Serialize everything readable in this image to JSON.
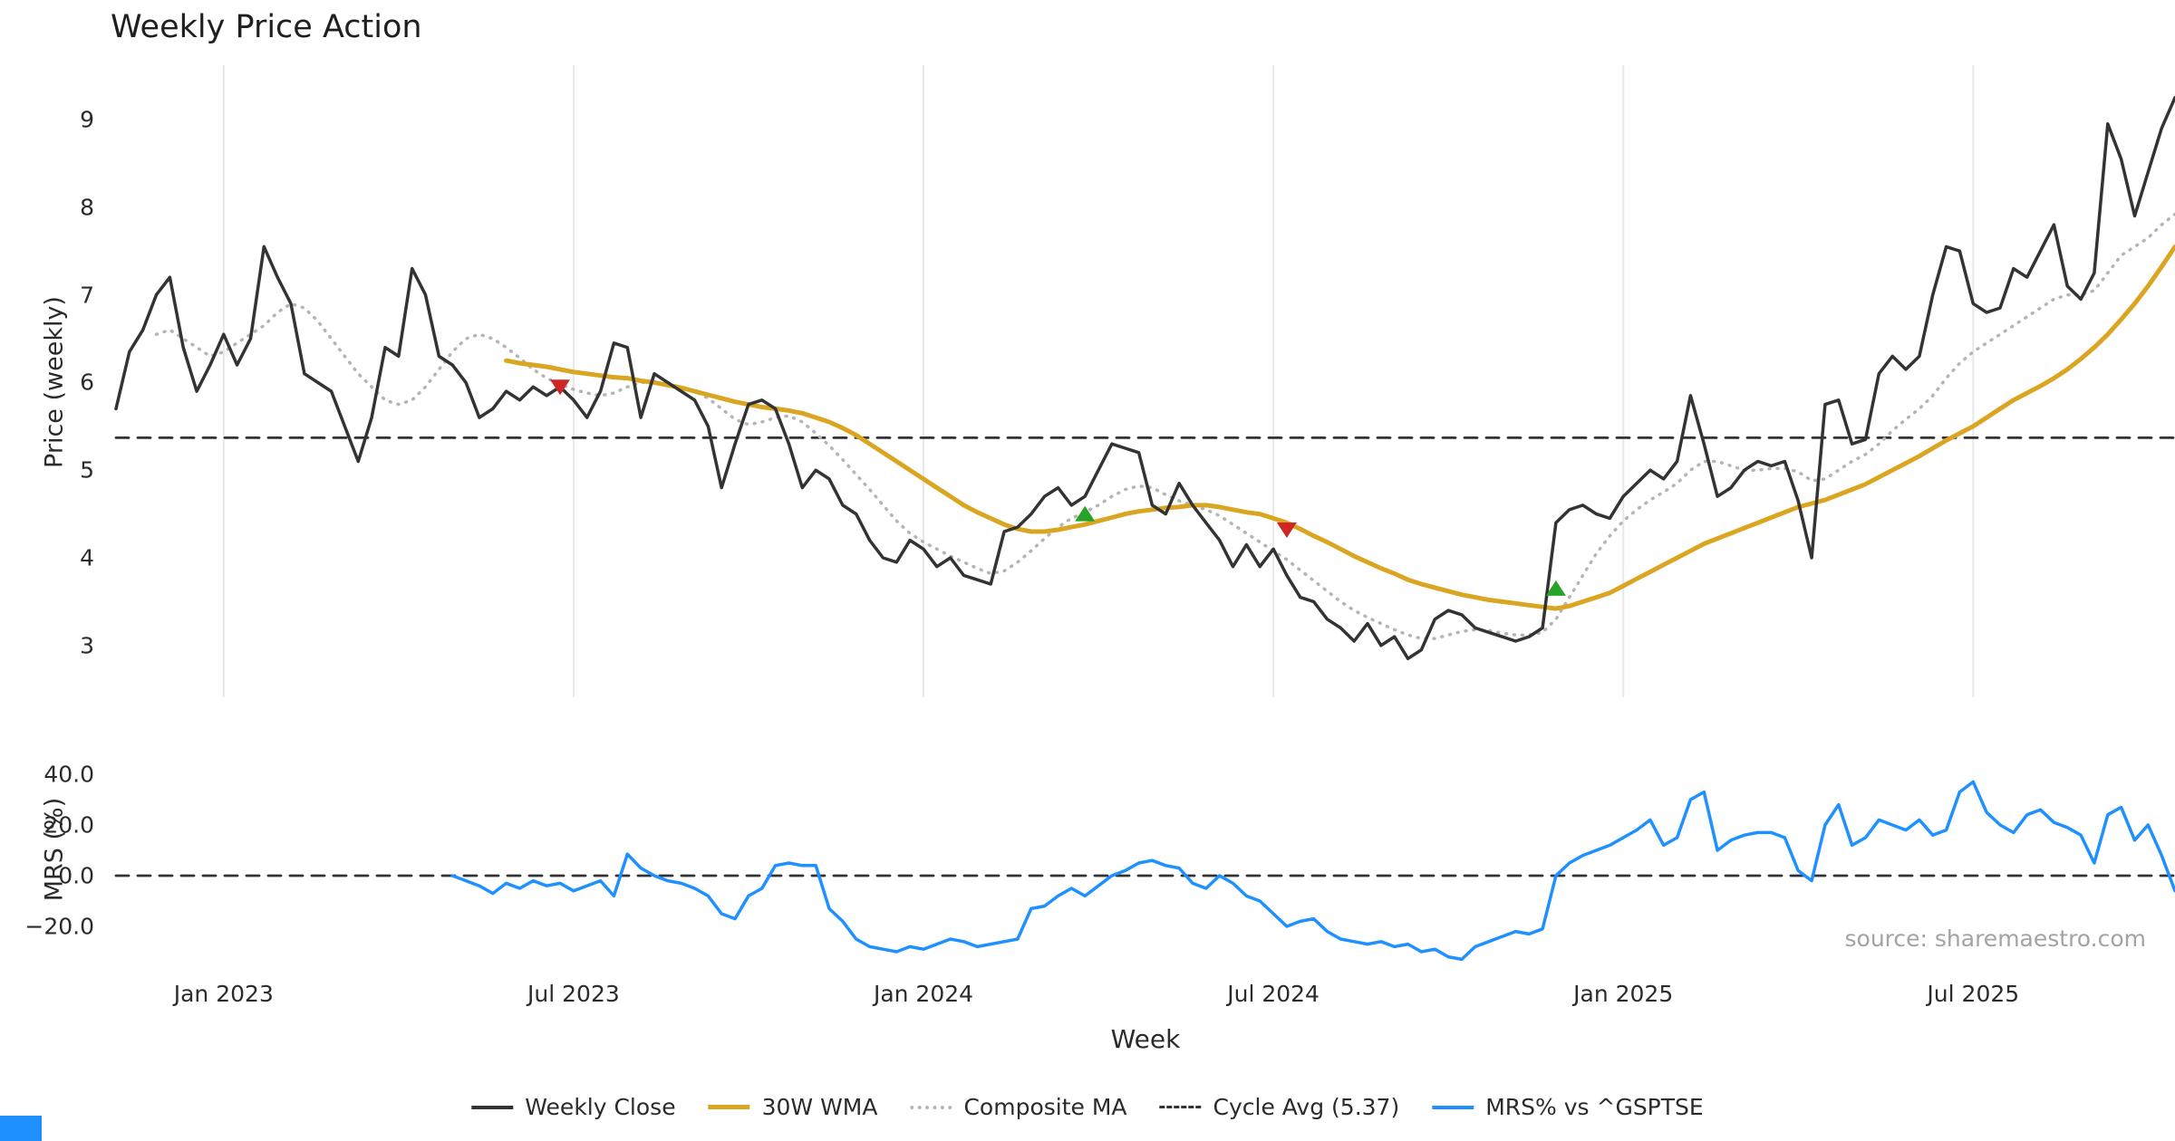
{
  "title": "Weekly Price Action",
  "source_text": "source: sharemaestro.com",
  "accent_colors": {
    "close": "#333333",
    "wma": "#DAA520",
    "composite": "#b5b5b5",
    "dashed": "#333333",
    "mrs": "#1E90FF",
    "buy": "#28A228",
    "sell": "#CF2525",
    "gridline": "#e8e8e8",
    "corner_mark": "#1E90FF"
  },
  "legend": [
    {
      "label": "Weekly Close",
      "color": "#333333",
      "style": "solid"
    },
    {
      "label": "30W WMA",
      "color": "#DAA520",
      "style": "solid"
    },
    {
      "label": "Composite MA",
      "color": "#b5b5b5",
      "style": "dotted"
    },
    {
      "label": "Cycle Avg (5.37)",
      "color": "#333333",
      "style": "dashed"
    },
    {
      "label": "MRS% vs ^GSPTSE",
      "color": "#1E90FF",
      "style": "solid"
    }
  ],
  "chart_data": [
    {
      "type": "line",
      "title": "Weekly Price Action",
      "ylabel": "Price (weekly)",
      "xlabel": "Week",
      "ylim": [
        2.4,
        9.6
      ],
      "grid": "vertical-only",
      "legend_position": "bottom-center",
      "x_unit": "weeks from 2022-11-07",
      "x_tick_weeks": [
        8,
        34,
        60,
        86,
        112,
        138
      ],
      "x_tick_labels": [
        "Jan 2023",
        "Jul 2023",
        "Jan 2024",
        "Jul 2024",
        "Jan 2025",
        "Jul 2025"
      ],
      "y_tick_values": [
        9,
        8,
        7,
        6,
        5,
        4,
        3
      ],
      "y_tick_labels": [
        "9",
        "8",
        "7",
        "6",
        "5",
        "4",
        "3"
      ],
      "series": [
        {
          "name": "Weekly Close",
          "color": "#333333",
          "style": "solid",
          "start_week": 0,
          "values": [
            5.7,
            6.35,
            6.6,
            7.0,
            7.2,
            6.4,
            5.9,
            6.2,
            6.55,
            6.2,
            6.5,
            7.55,
            7.2,
            6.9,
            6.1,
            6.0,
            5.9,
            5.5,
            5.1,
            5.6,
            6.4,
            6.3,
            7.3,
            7.0,
            6.3,
            6.2,
            6.0,
            5.6,
            5.7,
            5.9,
            5.8,
            5.95,
            5.85,
            5.95,
            5.8,
            5.6,
            5.9,
            6.45,
            6.4,
            5.6,
            6.1,
            6.0,
            5.9,
            5.8,
            5.5,
            4.8,
            5.3,
            5.75,
            5.8,
            5.7,
            5.3,
            4.8,
            5.0,
            4.9,
            4.6,
            4.5,
            4.2,
            4.0,
            3.95,
            4.2,
            4.1,
            3.9,
            4.0,
            3.8,
            3.75,
            3.7,
            4.3,
            4.35,
            4.5,
            4.7,
            4.8,
            4.6,
            4.7,
            5.0,
            5.3,
            5.25,
            5.2,
            4.6,
            4.5,
            4.85,
            4.6,
            4.4,
            4.2,
            3.9,
            4.15,
            3.9,
            4.1,
            3.8,
            3.55,
            3.5,
            3.3,
            3.2,
            3.05,
            3.25,
            3.0,
            3.1,
            2.85,
            2.95,
            3.3,
            3.4,
            3.35,
            3.2,
            3.15,
            3.1,
            3.05,
            3.1,
            3.2,
            4.4,
            4.55,
            4.6,
            4.5,
            4.45,
            4.7,
            4.85,
            5.0,
            4.9,
            5.1,
            5.85,
            5.3,
            4.7,
            4.8,
            5.0,
            5.1,
            5.05,
            5.1,
            4.65,
            4.0,
            5.75,
            5.8,
            5.3,
            5.35,
            6.1,
            6.3,
            6.15,
            6.3,
            7.0,
            7.55,
            7.5,
            6.9,
            6.8,
            6.85,
            7.3,
            7.2,
            7.5,
            7.8,
            7.1,
            6.95,
            7.25,
            8.95,
            8.55,
            7.9,
            8.4,
            8.9,
            9.25
          ]
        },
        {
          "name": "30W WMA",
          "color": "#DAA520",
          "style": "solid",
          "start_week": 29,
          "values": [
            6.25,
            6.22,
            6.2,
            6.18,
            6.15,
            6.12,
            6.1,
            6.08,
            6.06,
            6.05,
            6.02,
            6.0,
            5.97,
            5.94,
            5.9,
            5.86,
            5.82,
            5.78,
            5.75,
            5.72,
            5.7,
            5.68,
            5.65,
            5.6,
            5.55,
            5.48,
            5.4,
            5.3,
            5.2,
            5.1,
            5.0,
            4.9,
            4.8,
            4.7,
            4.6,
            4.52,
            4.45,
            4.38,
            4.33,
            4.3,
            4.3,
            4.32,
            4.35,
            4.38,
            4.42,
            4.46,
            4.5,
            4.53,
            4.55,
            4.57,
            4.58,
            4.6,
            4.6,
            4.58,
            4.55,
            4.52,
            4.5,
            4.45,
            4.4,
            4.33,
            4.25,
            4.18,
            4.1,
            4.02,
            3.95,
            3.88,
            3.82,
            3.75,
            3.7,
            3.66,
            3.62,
            3.58,
            3.55,
            3.52,
            3.5,
            3.48,
            3.46,
            3.44,
            3.42,
            3.45,
            3.5,
            3.55,
            3.6,
            3.68,
            3.76,
            3.84,
            3.92,
            4.0,
            4.08,
            4.16,
            4.22,
            4.28,
            4.34,
            4.4,
            4.46,
            4.52,
            4.58,
            4.62,
            4.66,
            4.72,
            4.78,
            4.84,
            4.92,
            5.0,
            5.08,
            5.16,
            5.25,
            5.34,
            5.42,
            5.5,
            5.6,
            5.7,
            5.8,
            5.88,
            5.96,
            6.05,
            6.15,
            6.27,
            6.4,
            6.55,
            6.72,
            6.9,
            7.1,
            7.32,
            7.55
          ]
        },
        {
          "name": "Composite MA",
          "color": "#b5b5b5",
          "style": "dotted",
          "start_week": 3,
          "values": [
            6.55,
            6.6,
            6.5,
            6.4,
            6.3,
            6.35,
            6.45,
            6.55,
            6.65,
            6.8,
            6.9,
            6.85,
            6.7,
            6.5,
            6.3,
            6.1,
            5.95,
            5.8,
            5.75,
            5.8,
            5.95,
            6.15,
            6.35,
            6.5,
            6.55,
            6.5,
            6.4,
            6.28,
            6.15,
            6.05,
            5.98,
            5.92,
            5.88,
            5.85,
            5.88,
            5.95,
            6.0,
            6.0,
            5.98,
            5.95,
            5.9,
            5.82,
            5.7,
            5.58,
            5.52,
            5.55,
            5.6,
            5.62,
            5.55,
            5.42,
            5.28,
            5.12,
            4.95,
            4.78,
            4.6,
            4.42,
            4.28,
            4.18,
            4.1,
            4.02,
            3.95,
            3.88,
            3.82,
            3.85,
            3.95,
            4.08,
            4.22,
            4.35,
            4.45,
            4.52,
            4.6,
            4.7,
            4.78,
            4.82,
            4.8,
            4.72,
            4.65,
            4.6,
            4.55,
            4.48,
            4.38,
            4.28,
            4.18,
            4.08,
            3.98,
            3.86,
            3.74,
            3.62,
            3.5,
            3.4,
            3.32,
            3.25,
            3.18,
            3.12,
            3.08,
            3.08,
            3.12,
            3.16,
            3.18,
            3.17,
            3.14,
            3.12,
            3.12,
            3.15,
            3.3,
            3.55,
            3.8,
            4.05,
            4.25,
            4.42,
            4.55,
            4.66,
            4.75,
            4.85,
            5.0,
            5.1,
            5.1,
            5.05,
            5.0,
            5.0,
            5.02,
            5.02,
            4.98,
            4.88,
            4.9,
            5.0,
            5.1,
            5.18,
            5.3,
            5.45,
            5.58,
            5.7,
            5.85,
            6.05,
            6.22,
            6.35,
            6.45,
            6.55,
            6.65,
            6.75,
            6.85,
            6.95,
            7.0,
            7.0,
            7.05,
            7.25,
            7.45,
            7.55,
            7.65,
            7.8,
            7.92
          ]
        },
        {
          "name": "Cycle Avg (5.37)",
          "color": "#333333",
          "style": "dashed",
          "value": 5.37
        }
      ],
      "signals": {
        "sell_color": "#CF2525",
        "buy_color": "#28A228",
        "sell": [
          {
            "week": 33,
            "price": 5.95
          },
          {
            "week": 87,
            "price": 4.32
          }
        ],
        "buy": [
          {
            "week": 72,
            "price": 4.5
          },
          {
            "week": 107,
            "price": 3.65
          }
        ]
      }
    },
    {
      "type": "line",
      "title": "",
      "ylabel": "MRS (%)",
      "xlabel": "",
      "ylim": [
        -47,
        47
      ],
      "grid": "none",
      "y_tick_values": [
        40,
        20,
        0,
        -20
      ],
      "y_tick_labels": [
        "40.0",
        "20.0",
        "0.0",
        "−20.0"
      ],
      "series": [
        {
          "name": "MRS% vs ^GSPTSE",
          "color": "#1E90FF",
          "style": "solid",
          "start_week": 25,
          "values": [
            0,
            -2,
            -4,
            -7,
            -3,
            -5,
            -2,
            -4,
            -3,
            -6,
            -4,
            -2,
            -8,
            8.5,
            3,
            0,
            -2,
            -3,
            -5,
            -8,
            -15,
            -17,
            -8,
            -5,
            4,
            5,
            4,
            4,
            -13,
            -18,
            -25,
            -28,
            -29,
            -30,
            -28,
            -29,
            -27,
            -25,
            -26,
            -28,
            -27,
            -26,
            -25,
            -13,
            -12,
            -8,
            -5,
            -8,
            -4,
            0,
            2,
            5,
            6,
            4,
            3,
            -3,
            -5,
            0,
            -3,
            -8,
            -10,
            -15,
            -20,
            -18,
            -17,
            -22,
            -25,
            -26,
            -27,
            -26,
            -28,
            -27,
            -30,
            -29,
            -32,
            -33,
            -28,
            -26,
            -24,
            -22,
            -23,
            -21,
            0,
            5,
            8,
            10,
            12,
            15,
            18,
            22,
            12,
            15,
            30,
            33,
            10,
            14,
            16,
            17,
            17,
            15,
            2,
            -2,
            20,
            28,
            12,
            15,
            22,
            20,
            18,
            22,
            16,
            18,
            33,
            37,
            25,
            20,
            17,
            24,
            26,
            21,
            19,
            16,
            5,
            24,
            27,
            14,
            20,
            8,
            -6
          ]
        },
        {
          "name": "Zero Line",
          "color": "#333333",
          "style": "dashed",
          "value": 0
        }
      ]
    }
  ]
}
